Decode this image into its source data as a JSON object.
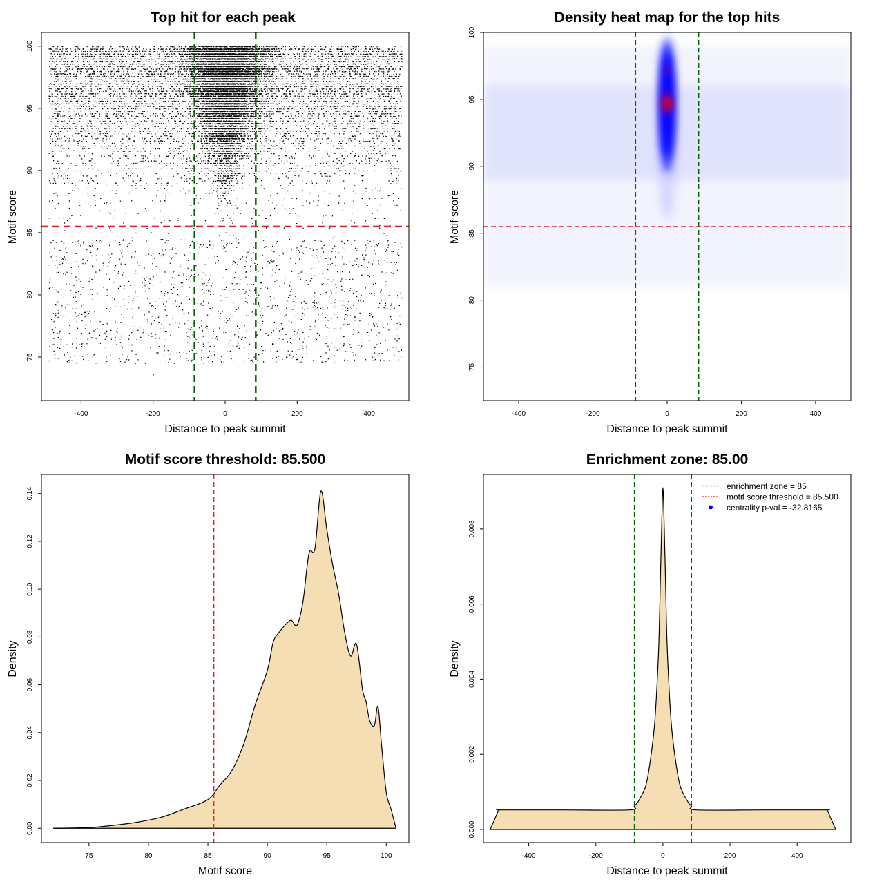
{
  "chart_data": [
    {
      "type": "scatter",
      "title": "Top hit for each peak",
      "xlabel": "Distance to peak summit",
      "ylabel": "Motif score",
      "xlim": [
        -510,
        510
      ],
      "ylim": [
        71.5,
        101.1
      ],
      "xticks": [
        -400,
        -200,
        0,
        200,
        400
      ],
      "yticks": [
        75,
        80,
        85,
        90,
        95,
        100
      ],
      "x_range_points": [
        -490,
        490
      ],
      "y_range_points": [
        72.5,
        100
      ],
      "vlines": [
        -85,
        85
      ],
      "hline": 85.5,
      "colors": {
        "points": "#000000",
        "vlines": "#006400",
        "hline": "#e0262c"
      }
    },
    {
      "type": "heatmap",
      "title": "Density heat map for the top hits",
      "xlabel": "Distance to peak summit",
      "ylabel": "Motif score",
      "xlim": [
        -495,
        495
      ],
      "ylim": [
        72.5,
        100
      ],
      "xticks": [
        -400,
        -200,
        0,
        200,
        400
      ],
      "yticks": [
        75,
        80,
        85,
        90,
        95,
        100
      ],
      "vlines": [
        -85,
        85
      ],
      "hline": 85.5,
      "peak": {
        "x": 0,
        "y": 94.7
      },
      "colors": {
        "low": "#ffffff",
        "mid": "#0000ff",
        "high": "#ff0000",
        "vlines": "#006400",
        "hline": "#e0262c"
      }
    },
    {
      "type": "area",
      "title": "Motif score threshold: 85.500",
      "xlabel": "Motif score",
      "ylabel": "Density",
      "xlim": [
        71,
        101.9
      ],
      "ylim": [
        -0.006,
        0.148
      ],
      "xticks": [
        75,
        80,
        85,
        90,
        95,
        100
      ],
      "yticks": [
        0.0,
        0.02,
        0.04,
        0.06,
        0.08,
        0.1,
        0.12,
        0.14
      ],
      "ytick_labels": [
        "0.00",
        "0.02",
        "0.04",
        "0.06",
        "0.08",
        "0.10",
        "0.12",
        "0.14"
      ],
      "vline": 85.5,
      "x": [
        72,
        75,
        77,
        79,
        81,
        83,
        85,
        86,
        87,
        88,
        89,
        90,
        90.5,
        91,
        91.5,
        92,
        92.5,
        93,
        93.5,
        94,
        94.5,
        95,
        95.5,
        96,
        96.5,
        97,
        97.5,
        98,
        98.3,
        98.6,
        99,
        99.3,
        99.6,
        100,
        100.4,
        100.8
      ],
      "y": [
        0,
        0.0003,
        0.0012,
        0.0025,
        0.0045,
        0.008,
        0.012,
        0.018,
        0.024,
        0.035,
        0.052,
        0.066,
        0.078,
        0.082,
        0.085,
        0.087,
        0.085,
        0.095,
        0.115,
        0.117,
        0.141,
        0.125,
        0.11,
        0.098,
        0.082,
        0.072,
        0.077,
        0.058,
        0.053,
        0.045,
        0.043,
        0.051,
        0.035,
        0.015,
        0.008,
        0.0003
      ],
      "colors": {
        "fill": "#f5deb3",
        "line": "#000000",
        "vline": "#e0262c"
      }
    },
    {
      "type": "area",
      "title": "Enrichment zone: 85.00",
      "xlabel": "Distance to peak summit",
      "ylabel": "Density",
      "xlim": [
        -535,
        560
      ],
      "ylim": [
        -0.00035,
        0.00945
      ],
      "xticks": [
        -400,
        -200,
        0,
        200,
        400
      ],
      "yticks": [
        0.0,
        0.002,
        0.004,
        0.006,
        0.008
      ],
      "ytick_labels": [
        "0.000",
        "0.002",
        "0.004",
        "0.006",
        "0.008"
      ],
      "vlines": [
        -85,
        85
      ],
      "x": [
        -515,
        -500,
        -490,
        -480,
        -300,
        -100,
        -85,
        -70,
        -50,
        -35,
        -25,
        -18,
        -12,
        -8,
        -4,
        0,
        4,
        8,
        12,
        18,
        25,
        35,
        50,
        70,
        85,
        100,
        300,
        480,
        490,
        500,
        515
      ],
      "y": [
        0,
        0.0003,
        0.0005,
        0.00052,
        0.00052,
        0.00052,
        0.00062,
        0.0008,
        0.0012,
        0.002,
        0.0028,
        0.0038,
        0.005,
        0.0065,
        0.008,
        0.0091,
        0.008,
        0.0065,
        0.005,
        0.0038,
        0.0028,
        0.002,
        0.0012,
        0.0008,
        0.00062,
        0.00052,
        0.00052,
        0.00052,
        0.0005,
        0.0003,
        0
      ],
      "legend": {
        "position": "top-right",
        "entries": [
          {
            "label": "enrichment zone = 85",
            "style": "dotted",
            "color": "#006400"
          },
          {
            "label": "motif score threshold = 85.500",
            "style": "dotted",
            "color": "#e0262c"
          },
          {
            "label": "centrality p-val = -32.8165",
            "style": "point",
            "color": "#0000ff"
          }
        ]
      },
      "colors": {
        "fill": "#f5deb3",
        "line": "#000000",
        "vlines": "#006400"
      }
    }
  ]
}
